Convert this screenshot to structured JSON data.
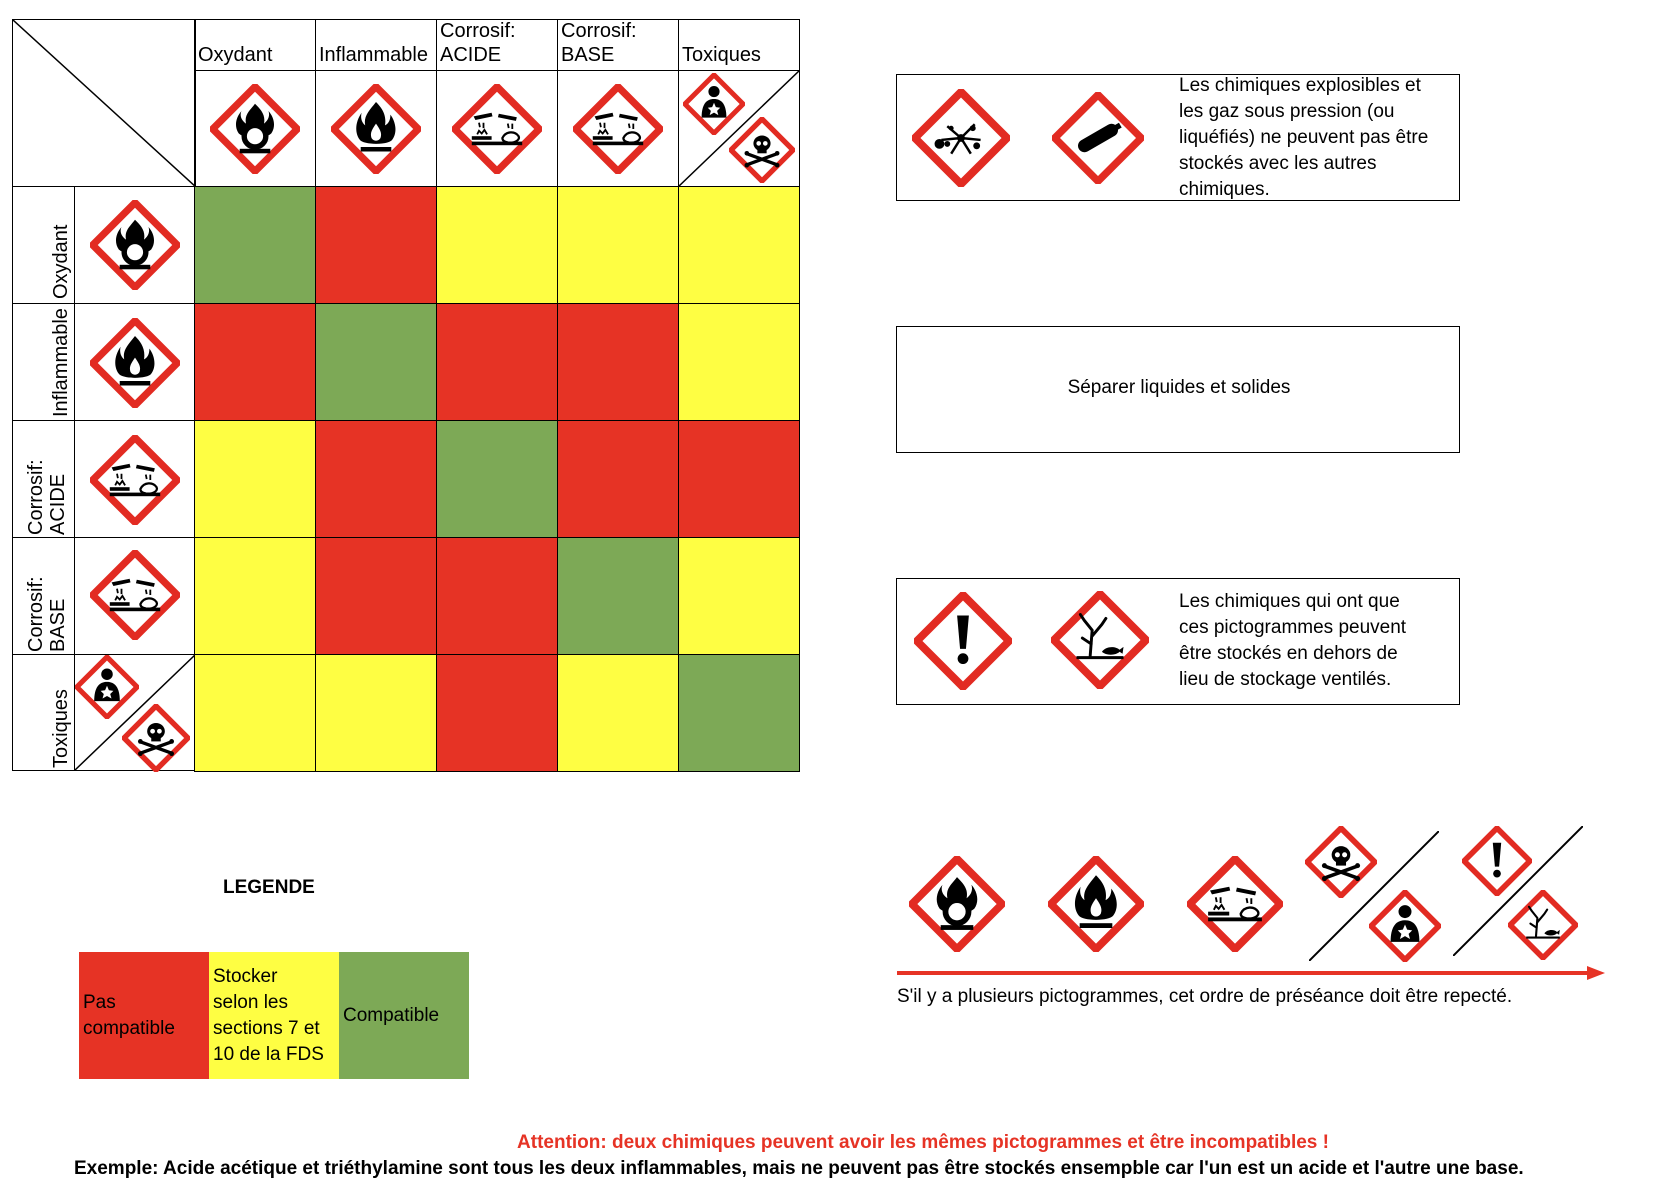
{
  "colors": {
    "red": "#e63325",
    "yellow": "#fefe43",
    "green": "#7da956",
    "ghs_red": "#e22b22"
  },
  "matrix": {
    "columns": [
      {
        "line1": "",
        "line2": "Oxydant",
        "icon": "oxidizer-icon"
      },
      {
        "line1": "",
        "line2": "Inflammable",
        "icon": "flammable-icon"
      },
      {
        "line1": "Corrosif:",
        "line2": "ACIDE",
        "icon": "corrosive-icon"
      },
      {
        "line1": "Corrosif:",
        "line2": "BASE",
        "icon": "corrosive-icon"
      },
      {
        "line1": "",
        "line2": "Toxiques",
        "icon": "health-hazard-and-skull-icons"
      }
    ],
    "rows": [
      {
        "line1": "Oxydant",
        "line2": "",
        "icon": "oxidizer-icon"
      },
      {
        "line1": "Inflammable",
        "line2": "",
        "icon": "flammable-icon"
      },
      {
        "line1": "Corrosif:",
        "line2": "ACIDE",
        "icon": "corrosive-icon"
      },
      {
        "line1": "Corrosif:",
        "line2": "BASE",
        "icon": "corrosive-icon"
      },
      {
        "line1": "Toxiques",
        "line2": "",
        "icon": "health-hazard-and-skull-icons"
      }
    ],
    "cells": [
      [
        "green",
        "red",
        "yellow",
        "yellow",
        "yellow"
      ],
      [
        "red",
        "green",
        "red",
        "red",
        "yellow"
      ],
      [
        "yellow",
        "red",
        "green",
        "red",
        "red"
      ],
      [
        "yellow",
        "red",
        "red",
        "green",
        "yellow"
      ],
      [
        "yellow",
        "yellow",
        "red",
        "yellow",
        "green"
      ]
    ]
  },
  "info_boxes": {
    "explosives": {
      "lines": [
        "Les chimiques explosibles et",
        "les gaz sous pression (ou",
        "liquéfiés) ne peuvent pas être",
        "stockés avec les autres",
        "chimiques."
      ],
      "icons": [
        "explosive-icon",
        "gas-cylinder-icon"
      ]
    },
    "separate": {
      "text": "Séparer liquides et solides"
    },
    "outside": {
      "lines": [
        "Les chimiques qui ont que",
        "ces pictogrammes peuvent",
        "être stockés en dehors de",
        "lieu de stockage ventilés."
      ],
      "icons": [
        "exclamation-icon",
        "environment-icon"
      ]
    }
  },
  "precedence": {
    "caption": "S'il y a plusieurs pictogrammes, cet ordre de préséance doit être repecté.",
    "icons": [
      "oxidizer-icon",
      "flammable-icon",
      "corrosive-icon",
      "skull-and-health-hazard-icons",
      "exclamation-and-environment-icons"
    ]
  },
  "legend": {
    "title": "LEGENDE",
    "items": [
      {
        "color": "red",
        "lines": [
          "Pas",
          "compatible"
        ]
      },
      {
        "color": "yellow",
        "lines": [
          "Stocker",
          "selon les",
          "sections 7 et",
          "10 de la FDS"
        ]
      },
      {
        "color": "green",
        "lines": [
          "Compatible"
        ]
      }
    ]
  },
  "footer": {
    "attention": "Attention: deux chimiques peuvent avoir les mêmes pictogrammes et être incompatibles !",
    "example": "Exemple: Acide acétique et triéthylamine sont tous les deux inflammables, mais ne peuvent pas être stockés ensempble car l'un est un acide et l'autre une base."
  }
}
